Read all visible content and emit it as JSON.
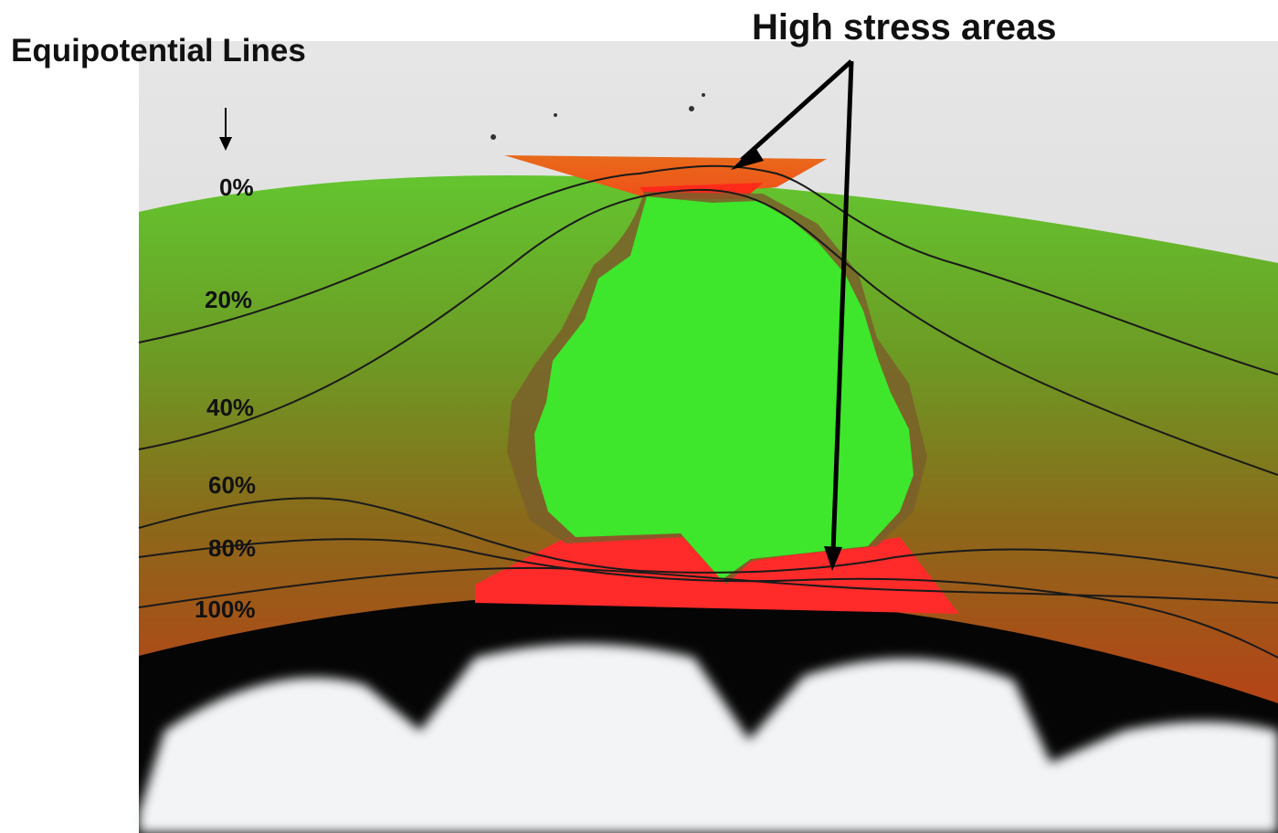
{
  "labels": {
    "equipotential_title": "Equipotential Lines",
    "stress_title": "High stress areas",
    "levels": [
      "0%",
      "20%",
      "40%",
      "60%",
      "80%",
      "100%"
    ]
  },
  "colors": {
    "insulation_outer": "#5fbf2c",
    "insulation_inner": "#d53a1a",
    "void": "#3ee62c",
    "high_stress": "#ff2a2a",
    "conductor": "#050505",
    "background": "#e8e8e8",
    "line": "#1a1a1a"
  }
}
